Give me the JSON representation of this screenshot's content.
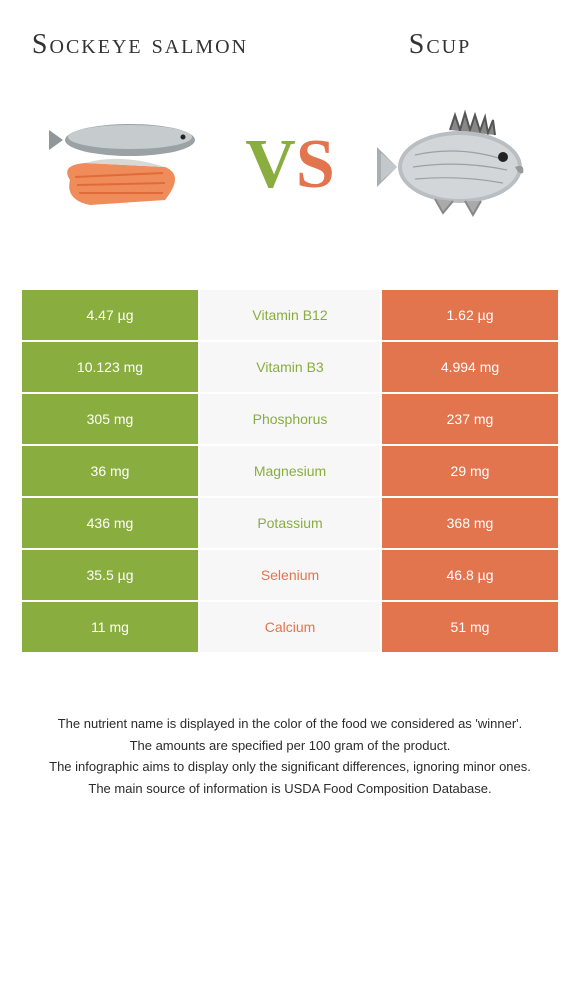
{
  "header": {
    "left_title": "Sockeye salmon",
    "right_title": "Scup"
  },
  "vs": {
    "v": "V",
    "s": "S"
  },
  "colors": {
    "green": "#8aad3f",
    "orange": "#e2744e",
    "mid_bg": "#f7f7f7",
    "text_dark": "#2b2b2b"
  },
  "table": {
    "rows": [
      {
        "left": "4.47 µg",
        "mid": "Vitamin B12",
        "right": "1.62 µg",
        "mid_color": "#8aad3f"
      },
      {
        "left": "10.123 mg",
        "mid": "Vitamin B3",
        "right": "4.994 mg",
        "mid_color": "#8aad3f"
      },
      {
        "left": "305 mg",
        "mid": "Phosphorus",
        "right": "237 mg",
        "mid_color": "#8aad3f"
      },
      {
        "left": "36 mg",
        "mid": "Magnesium",
        "right": "29 mg",
        "mid_color": "#8aad3f"
      },
      {
        "left": "436 mg",
        "mid": "Potassium",
        "right": "368 mg",
        "mid_color": "#8aad3f"
      },
      {
        "left": "35.5 µg",
        "mid": "Selenium",
        "right": "46.8 µg",
        "mid_color": "#e2744e"
      },
      {
        "left": "11 mg",
        "mid": "Calcium",
        "right": "51 mg",
        "mid_color": "#e2744e"
      }
    ]
  },
  "footer": {
    "line1": "The nutrient name is displayed in the color of the food we considered as 'winner'.",
    "line2": "The amounts are specified per 100 gram of the product.",
    "line3": "The infographic aims to display only the significant differences, ignoring minor ones.",
    "line4": "The main source of information is USDA Food Composition Database."
  }
}
